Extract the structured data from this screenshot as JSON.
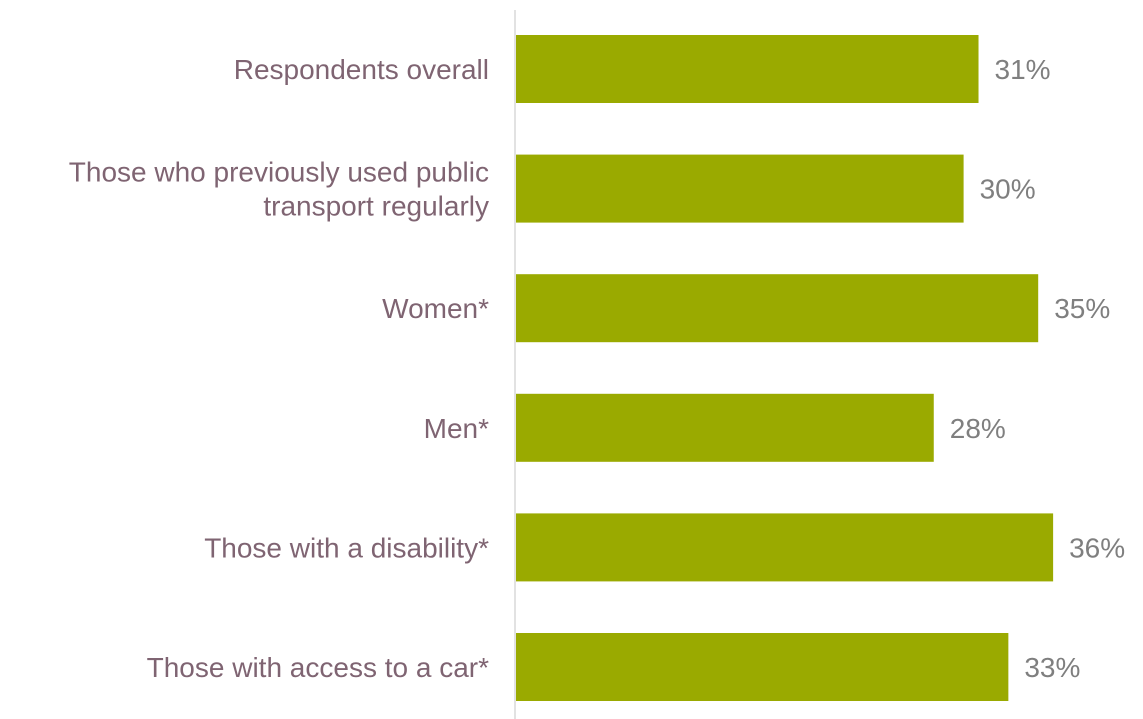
{
  "chart_data": {
    "type": "bar",
    "orientation": "horizontal",
    "categories": [
      [
        "Respondents overall"
      ],
      [
        "Those who previously used public",
        "transport regularly"
      ],
      [
        "Women*"
      ],
      [
        "Men*"
      ],
      [
        "Those with a disability*"
      ],
      [
        "Those with access to a car*"
      ]
    ],
    "values": [
      31,
      30,
      35,
      28,
      36,
      33
    ],
    "value_labels": [
      "31%",
      "30%",
      "35%",
      "28%",
      "36%",
      "33%"
    ],
    "value_unit": "%",
    "title": "",
    "xlabel": "",
    "ylabel": "",
    "grid": false,
    "legend": "none",
    "colors": {
      "bar": "#9aaa00",
      "axis": "#d9d9d9",
      "category_text": "#7f6472",
      "value_text": "#7f7f7f"
    }
  }
}
